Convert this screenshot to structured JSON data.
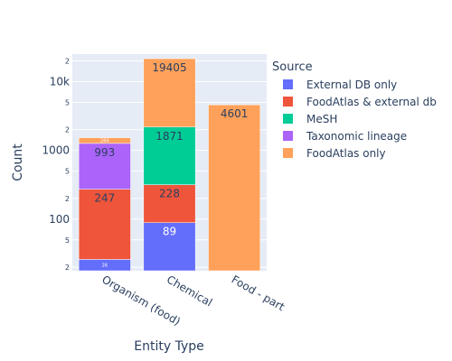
{
  "chart_data": {
    "type": "bar",
    "barmode": "stack",
    "yscale": "log",
    "xlabel": "Entity Type",
    "ylabel": "Count",
    "legend_title": "Source",
    "legend_position": "right",
    "categories": [
      "Organism (food)",
      "Chemical",
      "Food - part"
    ],
    "series": [
      {
        "name": "External DB only",
        "color": "#636efa",
        "values": [
          26,
          89,
          0
        ],
        "labels": [
          "26",
          "89",
          ""
        ]
      },
      {
        "name": "FoodAtlas & external db",
        "color": "#ef553b",
        "values": [
          247,
          228,
          0
        ],
        "labels": [
          "247",
          "228",
          ""
        ]
      },
      {
        "name": "MeSH",
        "color": "#00cc96",
        "values": [
          0,
          1871,
          0
        ],
        "labels": [
          "",
          "1871",
          ""
        ]
      },
      {
        "name": "Taxonomic lineage",
        "color": "#ab63fa",
        "values": [
          993,
          0,
          0
        ],
        "labels": [
          "993",
          "",
          ""
        ]
      },
      {
        "name": "FoodAtlas only",
        "color": "#ffa15a",
        "values": [
          264,
          19405,
          4601
        ],
        "labels": [
          "264",
          "19405",
          "4601"
        ]
      }
    ],
    "y_ticks": [
      {
        "v": 20,
        "t": "2"
      },
      {
        "v": 50,
        "t": "5"
      },
      {
        "v": 100,
        "t": "100"
      },
      {
        "v": 200,
        "t": "2"
      },
      {
        "v": 500,
        "t": "5"
      },
      {
        "v": 1000,
        "t": "1000"
      },
      {
        "v": 2000,
        "t": "2"
      },
      {
        "v": 5000,
        "t": "5"
      },
      {
        "v": 10000,
        "t": "10k"
      },
      {
        "v": 20000,
        "t": "2"
      }
    ],
    "y_range_log10": [
      1.25,
      4.4
    ]
  }
}
